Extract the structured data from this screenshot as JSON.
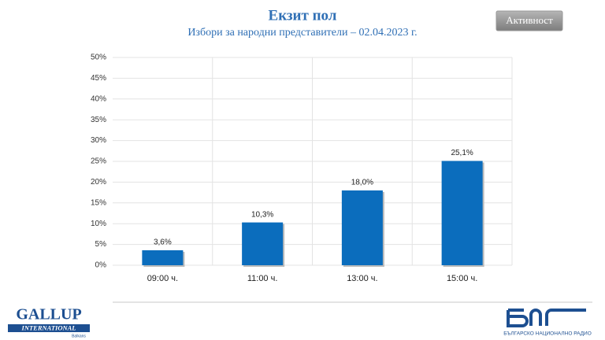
{
  "chart_data": {
    "type": "bar",
    "title": "Екзит пол",
    "subtitle": "Избори за народни представители – 02.04.2023 г.",
    "categories": [
      "09:00 ч.",
      "11:00 ч.",
      "13:00 ч.",
      "15:00 ч."
    ],
    "values": [
      3.6,
      10.3,
      18.0,
      25.1
    ],
    "value_labels": [
      "3,6%",
      "10,3%",
      "18,0%",
      "25,1%"
    ],
    "color": "#0b6dbd",
    "ylim": [
      0,
      50
    ],
    "yticks": [
      {
        "value": 0,
        "label": "0%"
      },
      {
        "value": 5,
        "label": "5%"
      },
      {
        "value": 10,
        "label": "10%"
      },
      {
        "value": 15,
        "label": "15%"
      },
      {
        "value": 20,
        "label": "20%"
      },
      {
        "value": 25,
        "label": "25%"
      },
      {
        "value": 30,
        "label": "30%"
      },
      {
        "value": 35,
        "label": "35%"
      },
      {
        "value": 40,
        "label": "40%"
      },
      {
        "value": 45,
        "label": "45%"
      },
      {
        "value": 50,
        "label": "50%"
      }
    ],
    "grid": true
  },
  "button": "Активност",
  "logo_left": {
    "name": "GALLUP",
    "sub": "INTERNATIONAL",
    "region": "Balkans"
  },
  "logo_right": {
    "caption": "БЪЛГАРСКО НАЦИОНАЛНО РАДИО"
  }
}
